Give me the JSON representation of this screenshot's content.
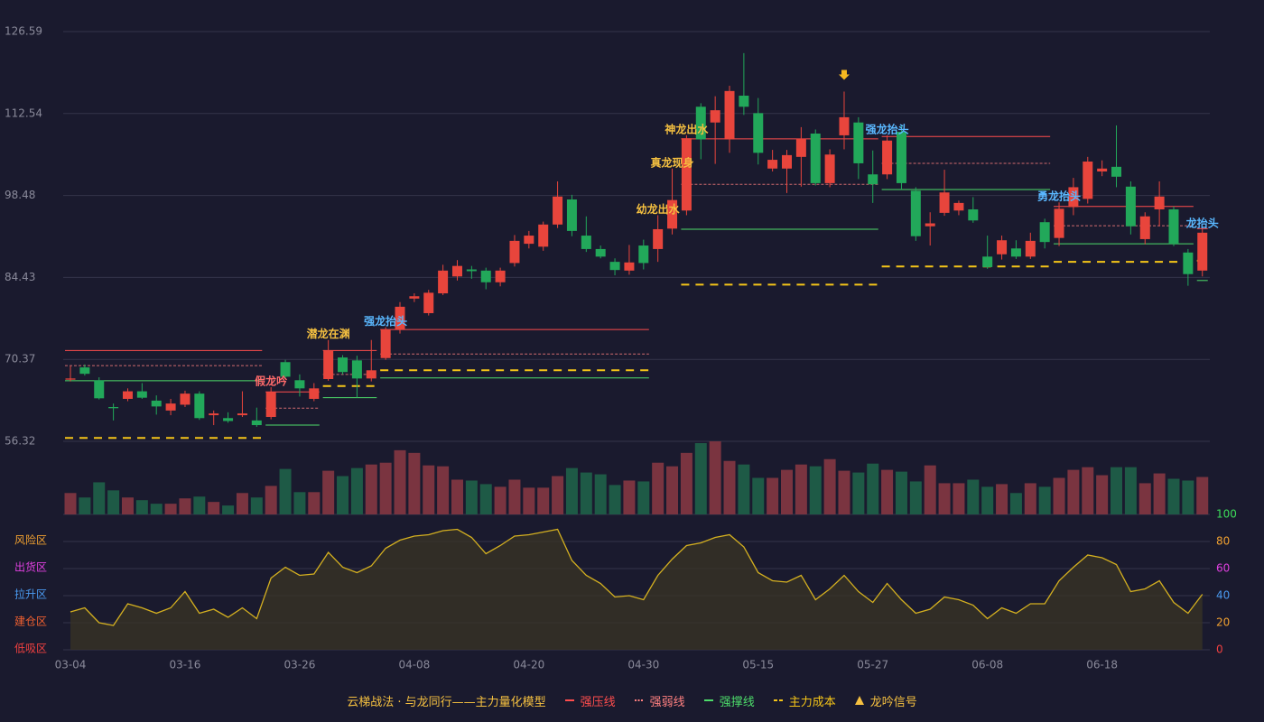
{
  "chart_data": {
    "type": "candlestick",
    "categories": [
      "03-04",
      null,
      null,
      null,
      null,
      null,
      null,
      null,
      "03-16",
      null,
      null,
      null,
      null,
      null,
      null,
      null,
      "03-26",
      null,
      null,
      null,
      null,
      null,
      null,
      null,
      "04-08",
      null,
      null,
      null,
      null,
      null,
      null,
      null,
      "04-20",
      null,
      null,
      null,
      null,
      null,
      null,
      null,
      "04-30",
      null,
      null,
      null,
      null,
      null,
      null,
      null,
      "05-15",
      null,
      null,
      null,
      null,
      null,
      null,
      null,
      "05-27",
      null,
      null,
      null,
      null,
      null,
      null,
      null,
      "06-08",
      null,
      null,
      null,
      null,
      null,
      null,
      null,
      "06-18",
      null,
      null,
      null,
      null,
      null,
      null,
      null
    ],
    "open": [
      66.9,
      69.0,
      66.8,
      62.2,
      63.6,
      64.9,
      63.3,
      61.6,
      62.6,
      64.5,
      60.8,
      60.3,
      60.8,
      59.9,
      60.5,
      69.9,
      66.8,
      63.6,
      67.0,
      70.7,
      70.2,
      67.1,
      70.6,
      75.5,
      80.8,
      78.3,
      81.7,
      84.6,
      85.8,
      85.6,
      83.6,
      86.9,
      90.2,
      89.7,
      93.5,
      97.8,
      91.6,
      89.3,
      87.1,
      85.6,
      89.9,
      89.3,
      92.8,
      95.9,
      113.7,
      111.0,
      108.1,
      115.6,
      112.6,
      103.1,
      103.1,
      105.1,
      109.1,
      100.6,
      108.8,
      111.0,
      102.1,
      102.1,
      109.4,
      99.3,
      93.2,
      95.5,
      95.9,
      96.1,
      88.0,
      88.4,
      89.4,
      88.0,
      93.9,
      91.2,
      96.5,
      97.9,
      102.6,
      103.4,
      100.0,
      91.0,
      96.1,
      96.1,
      88.7,
      85.6
    ],
    "high": [
      69.2,
      69.5,
      67.3,
      62.8,
      65.4,
      66.3,
      64.2,
      63.6,
      65.0,
      64.9,
      61.6,
      61.3,
      64.9,
      62.1,
      65.6,
      70.3,
      67.8,
      66.3,
      73.7,
      71.1,
      71.0,
      73.7,
      75.9,
      80.2,
      81.7,
      82.3,
      86.6,
      87.4,
      86.4,
      86.1,
      86.1,
      91.7,
      92.4,
      94.0,
      100.9,
      98.6,
      94.9,
      89.9,
      87.7,
      90.0,
      90.9,
      95.1,
      103.1,
      108.8,
      114.3,
      115.5,
      117.3,
      122.9,
      115.2,
      106.3,
      106.3,
      110.2,
      109.8,
      106.4,
      116.3,
      111.9,
      106.2,
      108.8,
      110.5,
      99.9,
      95.6,
      102.9,
      97.6,
      98.2,
      91.6,
      91.6,
      90.8,
      92.1,
      94.5,
      97.3,
      101.5,
      105.1,
      104.5,
      110.5,
      100.9,
      95.6,
      100.9,
      96.6,
      89.3,
      92.7
    ],
    "low": [
      66.6,
      67.6,
      63.5,
      59.9,
      63.2,
      63.6,
      60.9,
      60.8,
      62.2,
      60.0,
      59.1,
      59.5,
      60.5,
      58.8,
      60.1,
      67.0,
      64.0,
      63.2,
      66.7,
      67.8,
      63.8,
      66.6,
      70.3,
      74.8,
      80.2,
      77.9,
      81.4,
      83.9,
      84.2,
      82.4,
      82.9,
      86.3,
      89.4,
      89.0,
      92.9,
      91.5,
      88.8,
      87.7,
      84.8,
      84.9,
      85.8,
      87.1,
      91.8,
      95.1,
      104.7,
      103.9,
      105.8,
      112.3,
      103.8,
      102.6,
      98.9,
      100.0,
      100.2,
      99.9,
      106.4,
      101.3,
      97.2,
      101.3,
      99.5,
      90.7,
      89.9,
      95.0,
      95.1,
      93.8,
      85.9,
      87.5,
      87.6,
      87.6,
      89.4,
      89.8,
      95.1,
      97.1,
      101.8,
      99.9,
      91.8,
      90.1,
      93.2,
      89.8,
      83.0,
      84.6
    ],
    "close": [
      67.1,
      67.9,
      63.7,
      62.0,
      64.9,
      63.8,
      62.3,
      62.8,
      64.5,
      60.3,
      61.1,
      59.8,
      61.1,
      59.1,
      64.8,
      67.4,
      65.4,
      65.4,
      71.9,
      68.2,
      67.1,
      68.5,
      75.5,
      79.4,
      81.2,
      81.8,
      85.6,
      86.4,
      85.5,
      83.6,
      85.6,
      90.7,
      91.6,
      93.5,
      98.3,
      92.4,
      89.3,
      88.0,
      85.7,
      87.0,
      86.9,
      92.7,
      97.7,
      108.3,
      108.1,
      113.1,
      116.4,
      113.7,
      105.8,
      104.6,
      105.4,
      108.2,
      100.6,
      105.5,
      111.9,
      104.0,
      100.4,
      107.9,
      100.6,
      91.5,
      93.7,
      99.0,
      97.2,
      94.2,
      86.2,
      90.8,
      88.0,
      90.7,
      90.5,
      96.2,
      99.9,
      104.3,
      103.1,
      101.7,
      93.2,
      94.9,
      98.3,
      90.2,
      85.0,
      92.1
    ],
    "ylim": [
      56.32,
      126.59
    ],
    "yticks": [
      126.59,
      112.54,
      98.48,
      84.43,
      70.37,
      56.32
    ],
    "up_color": "#e8453c",
    "down_color": "#22a85a",
    "volume": {
      "values": [
        24,
        19,
        36,
        27,
        19,
        16,
        12,
        12,
        18,
        20,
        14,
        10,
        24,
        19,
        32,
        51,
        25,
        25,
        49,
        43,
        52,
        56,
        58,
        72,
        69,
        55,
        54,
        39,
        38,
        34,
        31,
        39,
        30,
        30,
        43,
        52,
        47,
        45,
        33,
        38,
        37,
        58,
        54,
        69,
        80,
        82,
        60,
        56,
        41,
        41,
        50,
        56,
        54,
        62,
        49,
        47,
        57,
        50,
        48,
        37,
        55,
        35,
        35,
        39,
        31,
        34,
        24,
        35,
        31,
        41,
        50,
        53,
        44,
        53,
        53,
        35,
        46,
        40,
        38,
        42
      ],
      "ylim": [
        0,
        82
      ],
      "up_color": "#7a3440",
      "down_color": "#1e5a46"
    },
    "oscillator": {
      "values": [
        28,
        31,
        20,
        18,
        34,
        31,
        27,
        31,
        43,
        27,
        30,
        24,
        31,
        23,
        53,
        61,
        55,
        56,
        72,
        61,
        57,
        62,
        75,
        81,
        84,
        85,
        88,
        89,
        83,
        71,
        77,
        84,
        85,
        87,
        89,
        66,
        55,
        49,
        39,
        40,
        37,
        55,
        67,
        77,
        79,
        83,
        85,
        76,
        57,
        51,
        50,
        55,
        37,
        45,
        55,
        43,
        35,
        49,
        37,
        27,
        30,
        39,
        37,
        33,
        23,
        31,
        27,
        34,
        34,
        51,
        61,
        70,
        68,
        63,
        43,
        45,
        51,
        35,
        27,
        41
      ],
      "ylim": [
        0,
        100
      ],
      "yticks": [
        100,
        80,
        60,
        40,
        20,
        0
      ],
      "ytick_colors": [
        "#3ddc5a",
        "#f0a030",
        "#e040e0",
        "#4a9af0",
        "#f0a030",
        "#f04040"
      ],
      "zones": [
        {
          "value": 80,
          "label": "风险区",
          "color": "#f0a030"
        },
        {
          "value": 60,
          "label": "出货区",
          "color": "#e040e0"
        },
        {
          "value": 40,
          "label": "拉升区",
          "color": "#4a9af0"
        },
        {
          "value": 20,
          "label": "建仓区",
          "color": "#f06030"
        },
        {
          "value": 0,
          "label": "低吸区",
          "color": "#f04040"
        }
      ],
      "color": "#d4b020"
    },
    "levels": [
      {
        "start": 0,
        "end": 13,
        "strong_pressure": 71.9,
        "weak": 69.3,
        "support": 66.7,
        "cost": 56.9
      },
      {
        "start": 14,
        "end": 17,
        "strong_pressure": 64.8,
        "weak": 62.0,
        "support": 59.1
      },
      {
        "start": 18,
        "end": 21,
        "strong_pressure": 71.9,
        "weak": 67.8,
        "support": 63.8,
        "cost": 65.8
      },
      {
        "start": 22,
        "end": 40,
        "strong_pressure": 75.5,
        "weak": 71.3,
        "support": 67.2,
        "cost": 68.5
      },
      {
        "start": 43,
        "end": 56,
        "strong_pressure": 108.2,
        "weak": 100.4,
        "support": 92.7,
        "cost": 83.2
      },
      {
        "start": 57,
        "end": 68,
        "strong_pressure": 108.6,
        "weak": 104.0,
        "support": 99.5,
        "cost": 86.3
      },
      {
        "start": 69,
        "end": 78,
        "strong_pressure": 96.6,
        "weak": 93.3,
        "support": 90.2,
        "cost": 87.1
      },
      {
        "start": 79,
        "end": 79,
        "strong_pressure": 92.8,
        "support": 83.9,
        "cost": 87.3
      }
    ],
    "signals": [
      {
        "index": 14,
        "text": "假龙吟",
        "color": "#ff6b6b"
      },
      {
        "index": 18,
        "text": "潜龙在渊",
        "color": "#f5c040"
      },
      {
        "index": 22,
        "text": "强龙抬头",
        "color": "#5ab8ff"
      },
      {
        "index": 41,
        "text": "幼龙出水",
        "color": "#f5c040"
      },
      {
        "index": 42,
        "text": "真龙现身",
        "color": "#f5c040"
      },
      {
        "index": 43,
        "text": "神龙出水",
        "color": "#f5c040"
      },
      {
        "index": 57,
        "text": "强龙抬头",
        "color": "#5ab8ff"
      },
      {
        "index": 69,
        "text": "勇龙抬头",
        "color": "#5ab8ff"
      },
      {
        "index": 79,
        "text": "龙抬头",
        "color": "#5ab8ff"
      }
    ],
    "arrows": [
      54
    ],
    "legend": {
      "title": "云梯战法 · 与龙同行——主力量化模型",
      "title_color": "#f5c040",
      "items": [
        {
          "name": "强压线",
          "color": "#ff4d4d",
          "style": "solid"
        },
        {
          "name": "强弱线",
          "color": "#ff8080",
          "style": "dotted"
        },
        {
          "name": "强撑线",
          "color": "#4ddc6a",
          "style": "solid"
        },
        {
          "name": "主力成本",
          "color": "#f5c518",
          "style": "dashed"
        },
        {
          "name": "龙吟信号",
          "color": "#f5c040",
          "style": "triangle"
        }
      ]
    },
    "level_colors": {
      "strong_pressure": "#ff4d4d",
      "weak": "#ff8080",
      "support": "#4ddc6a",
      "cost": "#f5c518"
    }
  }
}
